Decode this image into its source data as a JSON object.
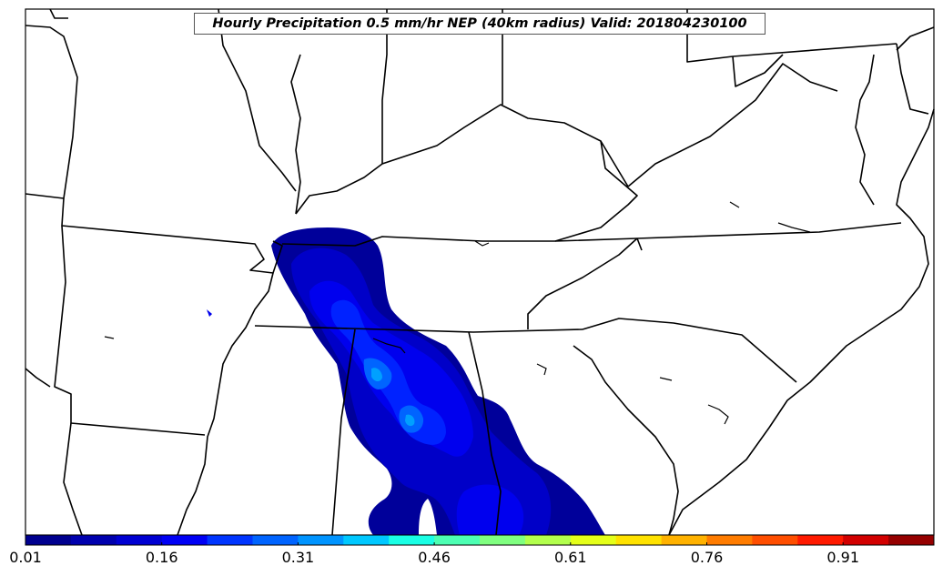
{
  "map": {
    "title": "Hourly Precipitation 0.5 mm/hr NEP (40km radius) Valid: 201804230100"
  },
  "colorbar": {
    "tick_labels": [
      "0.01",
      "0.16",
      "0.31",
      "0.46",
      "0.61",
      "0.76",
      "0.91"
    ],
    "colors": [
      "#00008f",
      "#0000ae",
      "#0000d2",
      "#0000f5",
      "#0035ff",
      "#0064ff",
      "#0094ff",
      "#00c8ff",
      "#1affe5",
      "#4dffb3",
      "#80ff80",
      "#b3ff4d",
      "#e5ff1a",
      "#ffe200",
      "#ffb200",
      "#ff7c00",
      "#ff4e00",
      "#ff1a00",
      "#d20000",
      "#950000"
    ]
  },
  "precip_colors": {
    "level1": "#00009a",
    "level2": "#0000c8",
    "level3": "#0000ee",
    "level4": "#0022ff",
    "level5": "#0064ff",
    "level6": "#00a0ff"
  }
}
